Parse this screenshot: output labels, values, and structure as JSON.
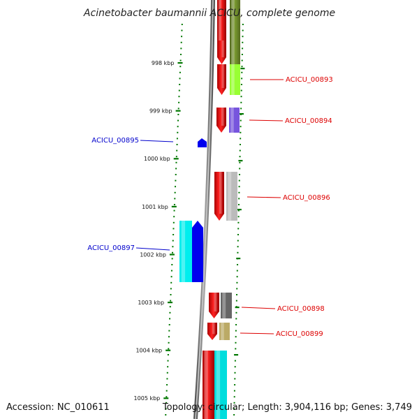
{
  "title": "Acinetobacter baumannii ACICU, complete genome",
  "footer": {
    "accession": "Accession: NC_010611",
    "topology": "Topology: circular; Length: 3,904,116 bp; Genes: 3,749"
  },
  "colors": {
    "forward_label": "#dd0000",
    "reverse_label": "#0000cc",
    "backbone": "#888888",
    "tick": "#007700"
  },
  "ruler": {
    "unit": "kbp",
    "labels": [
      "998 kbp",
      "999 kbp",
      "1000 kbp",
      "1001 kbp",
      "1002 kbp",
      "1003 kbp",
      "1004 kbp",
      "1005 kbp"
    ]
  },
  "genes": [
    {
      "id": "ACICU_00893",
      "strand": "+",
      "cog_color": "#99ff33",
      "labeled": true
    },
    {
      "id": "ACICU_00894",
      "strand": "+",
      "cog_color": "#7755dd",
      "labeled": true
    },
    {
      "id": "ACICU_00895",
      "strand": "-",
      "cog_color": "#0000ee",
      "labeled": true
    },
    {
      "id": "ACICU_00896",
      "strand": "+",
      "cog_color": "#bbbbbb",
      "labeled": true
    },
    {
      "id": "ACICU_00897",
      "strand": "-",
      "cog_color": "#00eeee",
      "labeled": true
    },
    {
      "id": "ACICU_00898",
      "strand": "+",
      "cog_color": "#666666",
      "labeled": true
    },
    {
      "id": "ACICU_00899",
      "strand": "+",
      "cog_color": "#bbaa66",
      "labeled": true
    }
  ]
}
